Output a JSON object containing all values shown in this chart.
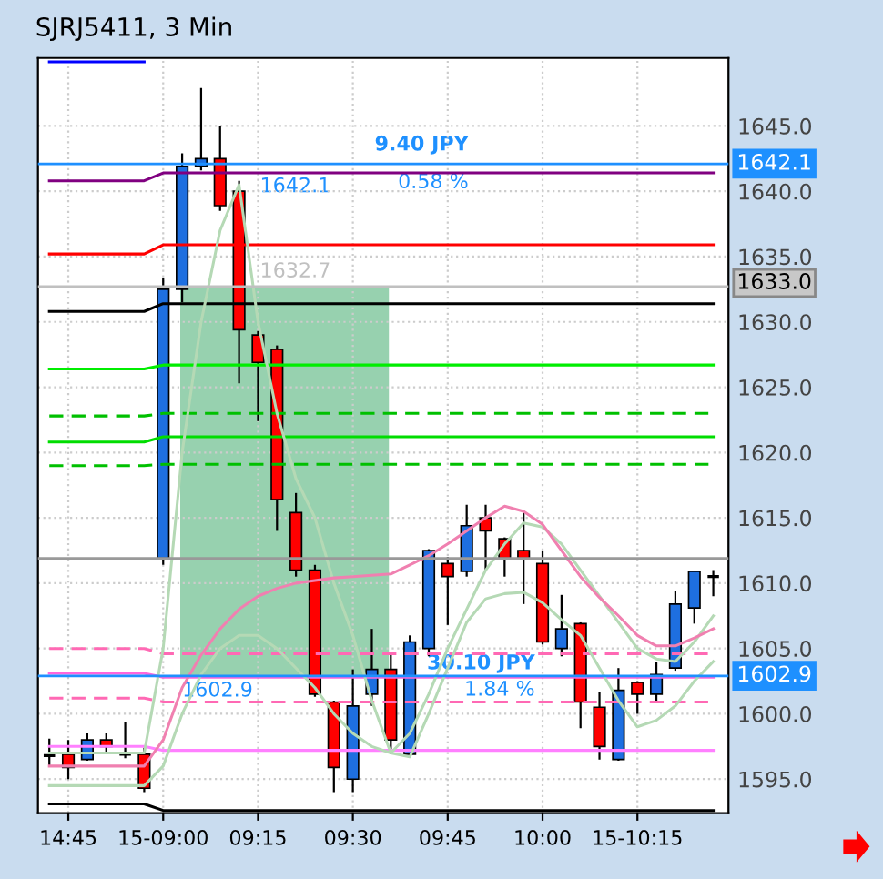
{
  "chart_data": {
    "type": "candlestick",
    "title": "SJRJ5411, 3 Min",
    "categories": [
      null,
      "14:45",
      null,
      null,
      null,
      null,
      "15-09:00",
      null,
      null,
      null,
      null,
      "09:15",
      null,
      null,
      null,
      null,
      "09:30",
      null,
      null,
      null,
      null,
      "09:45",
      null,
      null,
      null,
      null,
      "10:00",
      null,
      null,
      null,
      null,
      "15-10:15",
      null,
      null,
      null,
      null
    ],
    "ohlc": [
      [
        1596.8,
        1598.1,
        1596.0,
        1596.8
      ],
      [
        1596.9,
        1598.0,
        1595.0,
        1595.9
      ],
      [
        1596.5,
        1598.5,
        1596.4,
        1598.0
      ],
      [
        1598.0,
        1598.5,
        1596.9,
        1597.5
      ],
      [
        1596.9,
        1599.4,
        1596.6,
        1596.9
      ],
      [
        1596.9,
        1597.4,
        1594.0,
        1594.3
      ],
      [
        1611.9,
        1633.4,
        1611.4,
        1632.5
      ],
      [
        1632.5,
        1642.9,
        1631.5,
        1641.9
      ],
      [
        1641.9,
        1647.9,
        1641.6,
        1642.5
      ],
      [
        1642.5,
        1645.0,
        1638.5,
        1638.9
      ],
      [
        1640.0,
        1640.8,
        1625.3,
        1629.4
      ],
      [
        1629.0,
        1629.3,
        1622.4,
        1626.9
      ],
      [
        1627.9,
        1628.2,
        1614.0,
        1616.4
      ],
      [
        1615.4,
        1616.9,
        1610.5,
        1611.0
      ],
      [
        1611.0,
        1611.4,
        1601.3,
        1601.5
      ],
      [
        1600.9,
        1601.0,
        1594.0,
        1595.9
      ],
      [
        1595.0,
        1603.4,
        1594.0,
        1600.6
      ],
      [
        1601.5,
        1606.5,
        1600.6,
        1603.4
      ],
      [
        1603.4,
        1604.5,
        1596.9,
        1598.0
      ],
      [
        1596.9,
        1606.0,
        1596.7,
        1605.5
      ],
      [
        1605.0,
        1612.6,
        1604.4,
        1612.5
      ],
      [
        1611.5,
        1612.0,
        1606.8,
        1610.5
      ],
      [
        1610.9,
        1616.0,
        1610.5,
        1614.4
      ],
      [
        1615.0,
        1616.0,
        1610.9,
        1614.0
      ],
      [
        1613.4,
        1613.5,
        1610.5,
        1611.9
      ],
      [
        1612.5,
        1615.5,
        1608.4,
        1611.9
      ],
      [
        1611.5,
        1612.5,
        1605.3,
        1605.5
      ],
      [
        1605.0,
        1609.1,
        1604.4,
        1606.5
      ],
      [
        1606.9,
        1607.0,
        1598.9,
        1600.9
      ],
      [
        1600.5,
        1601.7,
        1596.5,
        1597.5
      ],
      [
        1596.5,
        1603.5,
        1596.4,
        1601.8
      ],
      [
        1602.4,
        1602.5,
        1600.0,
        1601.5
      ],
      [
        1601.5,
        1604.0,
        1600.9,
        1603.0
      ],
      [
        1603.5,
        1609.4,
        1603.3,
        1608.4
      ],
      [
        1608.1,
        1610.9,
        1606.9,
        1610.9
      ],
      [
        1610.5,
        1611.0,
        1609.0,
        1610.5
      ]
    ],
    "colors": [
      "#000000",
      "#ff0000",
      "#1e6fe0",
      "#ff0000",
      "#000000",
      "#ff0000",
      "#1e6fe0",
      "#1e6fe0",
      "#1e6fe0",
      "#ff0000",
      "#ff0000",
      "#ff0000",
      "#ff0000",
      "#ff0000",
      "#ff0000",
      "#ff0000",
      "#1e6fe0",
      "#1e6fe0",
      "#ff0000",
      "#1e6fe0",
      "#1e6fe0",
      "#ff0000",
      "#1e6fe0",
      "#ff0000",
      "#ff0000",
      "#ff0000",
      "#ff0000",
      "#1e6fe0",
      "#ff0000",
      "#ff0000",
      "#1e6fe0",
      "#ff0000",
      "#1e6fe0",
      "#1e6fe0",
      "#1e6fe0",
      "#000000"
    ],
    "series": [
      {
        "type": "line",
        "color": "#0000ff",
        "line_style": "solid",
        "values": [
          1649.9,
          1649.9,
          1649.9,
          1649.9,
          1649.9,
          1649.9,
          null,
          null,
          null,
          null,
          null,
          null,
          null,
          null,
          null,
          null,
          null,
          null,
          null,
          null,
          null,
          null,
          null,
          null,
          null,
          null,
          null,
          null,
          null,
          null,
          null,
          null,
          null,
          null,
          null,
          null
        ]
      },
      {
        "type": "line",
        "color": "#800080",
        "line_style": "solid",
        "values": [
          1640.8,
          1640.8,
          1640.8,
          1640.8,
          1640.8,
          1640.8,
          1641.4,
          1641.4,
          1641.4,
          1641.4,
          1641.4,
          1641.4,
          1641.4,
          1641.4,
          1641.4,
          1641.4,
          1641.4,
          1641.4,
          1641.4,
          1641.4,
          1641.4,
          1641.4,
          1641.4,
          1641.4,
          1641.4,
          1641.4,
          1641.4,
          1641.4,
          1641.4,
          1641.4,
          1641.4,
          1641.4,
          1641.4,
          1641.4,
          1641.4,
          1641.4
        ]
      },
      {
        "type": "line",
        "color": "#ff0000",
        "line_style": "solid",
        "values": [
          1635.2,
          1635.2,
          1635.2,
          1635.2,
          1635.2,
          1635.2,
          1635.9,
          1635.9,
          1635.9,
          1635.9,
          1635.9,
          1635.9,
          1635.9,
          1635.9,
          1635.9,
          1635.9,
          1635.9,
          1635.9,
          1635.9,
          1635.9,
          1635.9,
          1635.9,
          1635.9,
          1635.9,
          1635.9,
          1635.9,
          1635.9,
          1635.9,
          1635.9,
          1635.9,
          1635.9,
          1635.9,
          1635.9,
          1635.9,
          1635.9,
          1635.9
        ]
      },
      {
        "type": "line",
        "color": "#000000",
        "line_style": "solid",
        "values": [
          1630.8,
          1630.8,
          1630.8,
          1630.8,
          1630.8,
          1630.8,
          1631.4,
          1631.4,
          1631.4,
          1631.4,
          1631.4,
          1631.4,
          1631.4,
          1631.4,
          1631.4,
          1631.4,
          1631.4,
          1631.4,
          1631.4,
          1631.4,
          1631.4,
          1631.4,
          1631.4,
          1631.4,
          1631.4,
          1631.4,
          1631.4,
          1631.4,
          1631.4,
          1631.4,
          1631.4,
          1631.4,
          1631.4,
          1631.4,
          1631.4,
          1631.4
        ]
      },
      {
        "type": "line",
        "color": "#00ee00",
        "line_style": "solid",
        "values": [
          1626.4,
          1626.4,
          1626.4,
          1626.4,
          1626.4,
          1626.4,
          1626.7,
          1626.7,
          1626.7,
          1626.7,
          1626.7,
          1626.7,
          1626.7,
          1626.7,
          1626.7,
          1626.7,
          1626.7,
          1626.7,
          1626.7,
          1626.7,
          1626.7,
          1626.7,
          1626.7,
          1626.7,
          1626.7,
          1626.7,
          1626.7,
          1626.7,
          1626.7,
          1626.7,
          1626.7,
          1626.7,
          1626.7,
          1626.7,
          1626.7,
          1626.7
        ]
      },
      {
        "type": "line",
        "color": "#00c000",
        "line_style": "dashed",
        "values": [
          1622.8,
          1622.8,
          1622.8,
          1622.8,
          1622.8,
          1622.8,
          1623.0,
          1623.0,
          1623.0,
          1623.0,
          1623.0,
          1623.0,
          1623.0,
          1623.0,
          1623.0,
          1623.0,
          1623.0,
          1623.0,
          1623.0,
          1623.0,
          1623.0,
          1623.0,
          1623.0,
          1623.0,
          1623.0,
          1623.0,
          1623.0,
          1623.0,
          1623.0,
          1623.0,
          1623.0,
          1623.0,
          1623.0,
          1623.0,
          1623.0,
          1623.0
        ]
      },
      {
        "type": "line",
        "color": "#00dd00",
        "line_style": "solid",
        "values": [
          1620.8,
          1620.8,
          1620.8,
          1620.8,
          1620.8,
          1620.8,
          1621.2,
          1621.2,
          1621.2,
          1621.2,
          1621.2,
          1621.2,
          1621.2,
          1621.2,
          1621.2,
          1621.2,
          1621.2,
          1621.2,
          1621.2,
          1621.2,
          1621.2,
          1621.2,
          1621.2,
          1621.2,
          1621.2,
          1621.2,
          1621.2,
          1621.2,
          1621.2,
          1621.2,
          1621.2,
          1621.2,
          1621.2,
          1621.2,
          1621.2,
          1621.2
        ]
      },
      {
        "type": "line",
        "color": "#00c000",
        "line_style": "dashed",
        "values": [
          1619.0,
          1619.0,
          1619.0,
          1619.0,
          1619.0,
          1619.0,
          1619.1,
          1619.1,
          1619.1,
          1619.1,
          1619.1,
          1619.1,
          1619.1,
          1619.1,
          1619.1,
          1619.1,
          1619.1,
          1619.1,
          1619.1,
          1619.1,
          1619.1,
          1619.1,
          1619.1,
          1619.1,
          1619.1,
          1619.1,
          1619.1,
          1619.1,
          1619.1,
          1619.1,
          1619.1,
          1619.1,
          1619.1,
          1619.1,
          1619.1,
          1619.1
        ]
      },
      {
        "type": "line",
        "color": "#ff69b4",
        "line_style": "dashed",
        "values": [
          1605.0,
          1605.0,
          1605.0,
          1605.0,
          1605.0,
          1605.0,
          1604.6,
          1604.6,
          1604.6,
          1604.6,
          1604.6,
          1604.6,
          1604.6,
          1604.6,
          1604.6,
          1604.6,
          1604.6,
          1604.6,
          1604.6,
          1604.6,
          1604.6,
          1604.6,
          1604.6,
          1604.6,
          1604.6,
          1604.6,
          1604.6,
          1604.6,
          1604.6,
          1604.6,
          1604.6,
          1604.6,
          1604.6,
          1604.6,
          1604.6,
          1604.6
        ]
      },
      {
        "type": "line",
        "color": "#ff66dd",
        "line_style": "solid",
        "values": [
          1603.1,
          1603.1,
          1603.1,
          1603.1,
          1603.1,
          1603.1,
          1602.8,
          1602.8,
          1602.8,
          1602.8,
          1602.8,
          1602.8,
          1602.8,
          1602.8,
          1602.8,
          1602.8,
          1602.8,
          1602.8,
          1602.8,
          1602.8,
          1602.8,
          1602.8,
          1602.8,
          1602.8,
          1602.8,
          1602.8,
          1602.8,
          1602.8,
          1602.8,
          1602.8,
          1602.8,
          1602.8,
          1602.8,
          1602.8,
          1602.8,
          1602.8
        ]
      },
      {
        "type": "line",
        "color": "#ff69b4",
        "line_style": "dashed",
        "values": [
          1601.2,
          1601.2,
          1601.2,
          1601.2,
          1601.2,
          1601.2,
          1600.9,
          1600.9,
          1600.9,
          1600.9,
          1600.9,
          1600.9,
          1600.9,
          1600.9,
          1600.9,
          1600.9,
          1600.9,
          1600.9,
          1600.9,
          1600.9,
          1600.9,
          1600.9,
          1600.9,
          1600.9,
          1600.9,
          1600.9,
          1600.9,
          1600.9,
          1600.9,
          1600.9,
          1600.9,
          1600.9,
          1600.9,
          1600.9,
          1600.9,
          1600.9
        ]
      },
      {
        "type": "line",
        "color": "#ff80ff",
        "line_style": "solid",
        "values": [
          1597.5,
          1597.5,
          1597.5,
          1597.5,
          1597.5,
          1597.5,
          1597.2,
          1597.2,
          1597.2,
          1597.2,
          1597.2,
          1597.2,
          1597.2,
          1597.2,
          1597.2,
          1597.2,
          1597.2,
          1597.2,
          1597.2,
          1597.2,
          1597.2,
          1597.2,
          1597.2,
          1597.2,
          1597.2,
          1597.2,
          1597.2,
          1597.2,
          1597.2,
          1597.2,
          1597.2,
          1597.2,
          1597.2,
          1597.2,
          1597.2,
          1597.2
        ]
      },
      {
        "type": "line",
        "color": "#000000",
        "line_style": "solid",
        "values": [
          1593.1,
          1593.1,
          1593.1,
          1593.1,
          1593.1,
          1593.1,
          1592.6,
          1592.6,
          1592.6,
          1592.6,
          1592.6,
          1592.6,
          1592.6,
          1592.6,
          1592.6,
          1592.6,
          1592.6,
          1592.6,
          1592.6,
          1592.6,
          1592.6,
          1592.6,
          1592.6,
          1592.6,
          1592.6,
          1592.6,
          1592.6,
          1592.6,
          1592.6,
          1592.6,
          1592.6,
          1592.6,
          1592.6,
          1592.6,
          1592.6,
          1592.6
        ]
      },
      {
        "type": "line",
        "color": "#b5d9b5",
        "line_style": "solid",
        "values": [
          1597.0,
          1597.0,
          1597.0,
          1597.0,
          1597.0,
          1597.0,
          1605.0,
          1620.0,
          1630.0,
          1637.0,
          1640.5,
          1630.0,
          1623.0,
          1618.0,
          1615.0,
          1610.0,
          1606.0,
          1601.0,
          1597.0,
          1598.5,
          1601.5,
          1605.0,
          1608.0,
          1611.0,
          1613.0,
          1614.6,
          1614.3,
          1613.0,
          1611.0,
          1609.0,
          1607.0,
          1605.0,
          1604.2,
          1604.0,
          1605.5,
          1607.5
        ]
      },
      {
        "type": "line",
        "color": "#b5d9b5",
        "line_style": "solid",
        "values": [
          1594.5,
          1594.5,
          1594.5,
          1594.5,
          1594.5,
          1594.5,
          1596.0,
          1600.0,
          1603.0,
          1605.0,
          1606.0,
          1606.0,
          1605.0,
          1603.5,
          1602.0,
          1600.0,
          1598.5,
          1597.5,
          1597.0,
          1596.7,
          1600.0,
          1603.5,
          1607.0,
          1608.8,
          1609.2,
          1609.3,
          1608.5,
          1607.2,
          1606.0,
          1603.5,
          1601.0,
          1599.0,
          1599.5,
          1600.6,
          1602.5,
          1604.0
        ]
      },
      {
        "type": "line",
        "color": "#f080b0",
        "line_style": "solid",
        "values": [
          1596.0,
          1596.0,
          1596.0,
          1596.0,
          1596.0,
          1596.0,
          1598.0,
          1602.0,
          1604.5,
          1606.5,
          1608.0,
          1609.0,
          1609.6,
          1610.0,
          1610.2,
          1610.4,
          1610.5,
          1610.6,
          1610.7,
          1611.4,
          1612.1,
          1613.0,
          1614.0,
          1615.0,
          1615.9,
          1615.5,
          1614.5,
          1612.5,
          1610.5,
          1608.9,
          1607.5,
          1606.0,
          1605.2,
          1605.2,
          1605.8,
          1606.5
        ]
      }
    ],
    "ref_lines": [
      {
        "axis": "y",
        "value": 1642.1,
        "label": "1642.1",
        "color": "#1e90ff"
      },
      {
        "axis": "y",
        "value": 1632.7,
        "label": "1632.7",
        "color": "#c0c0c0"
      },
      {
        "axis": "y",
        "value": 1602.9,
        "label": "1602.9",
        "color": "#1e90ff"
      },
      {
        "axis": "y",
        "value": 1611.9,
        "label": null,
        "color": "#999999"
      }
    ],
    "annotations": [
      "9.40 JPY",
      "0.58 %",
      "30.10 JPY",
      "1.84 %",
      "1642.1",
      "1633.0",
      "1602.9"
    ],
    "ylim": [
      1592.4,
      1650.2
    ],
    "yticks": [
      {
        "value": 1595,
        "label": "1595.0"
      },
      {
        "value": 1600,
        "label": "1600.0"
      },
      {
        "value": 1605,
        "label": "1605.0"
      },
      {
        "value": 1610,
        "label": "1610.0"
      },
      {
        "value": 1615,
        "label": "1615.0"
      },
      {
        "value": 1620,
        "label": "1620.0"
      },
      {
        "value": 1625,
        "label": "1625.0"
      },
      {
        "value": 1630,
        "label": "1630.0"
      },
      {
        "value": 1635,
        "label": "1635.0"
      },
      {
        "value": 1640,
        "label": "1640.0"
      },
      {
        "value": 1645,
        "label": "1645.0"
      }
    ],
    "grid": true
  }
}
